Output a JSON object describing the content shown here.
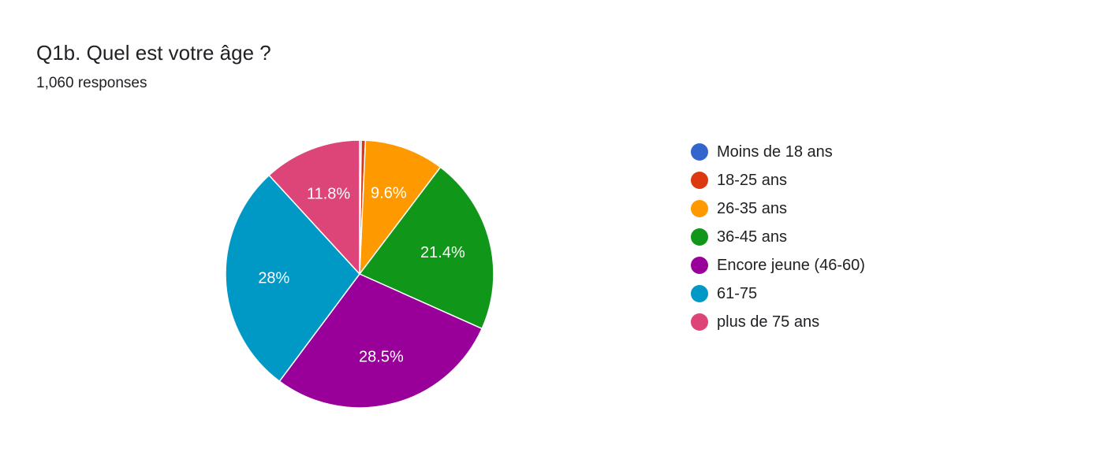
{
  "header": {
    "title": "Q1b. Quel est votre âge ?",
    "responses": "1,060 responses"
  },
  "chart_data": {
    "type": "pie",
    "title": "Q1b. Quel est votre âge ?",
    "total_responses": 1060,
    "start_angle_deg": 90,
    "direction": "clockwise",
    "legend_position": "right",
    "slices": [
      {
        "label": "Moins de 18 ans",
        "value": 0.2,
        "color": "#3366cc",
        "data_label": ""
      },
      {
        "label": "18-25 ans",
        "value": 0.5,
        "color": "#dc3912",
        "data_label": ""
      },
      {
        "label": "26-35 ans",
        "value": 9.6,
        "color": "#ff9900",
        "data_label": "9.6%"
      },
      {
        "label": "36-45 ans",
        "value": 21.4,
        "color": "#109618",
        "data_label": "21.4%"
      },
      {
        "label": "Encore jeune (46-60)",
        "value": 28.5,
        "color": "#990099",
        "data_label": "28.5%"
      },
      {
        "label": "61-75",
        "value": 28.0,
        "color": "#0099c6",
        "data_label": "28%"
      },
      {
        "label": "plus de 75 ans",
        "value": 11.8,
        "color": "#dd4477",
        "data_label": "11.8%"
      }
    ]
  }
}
